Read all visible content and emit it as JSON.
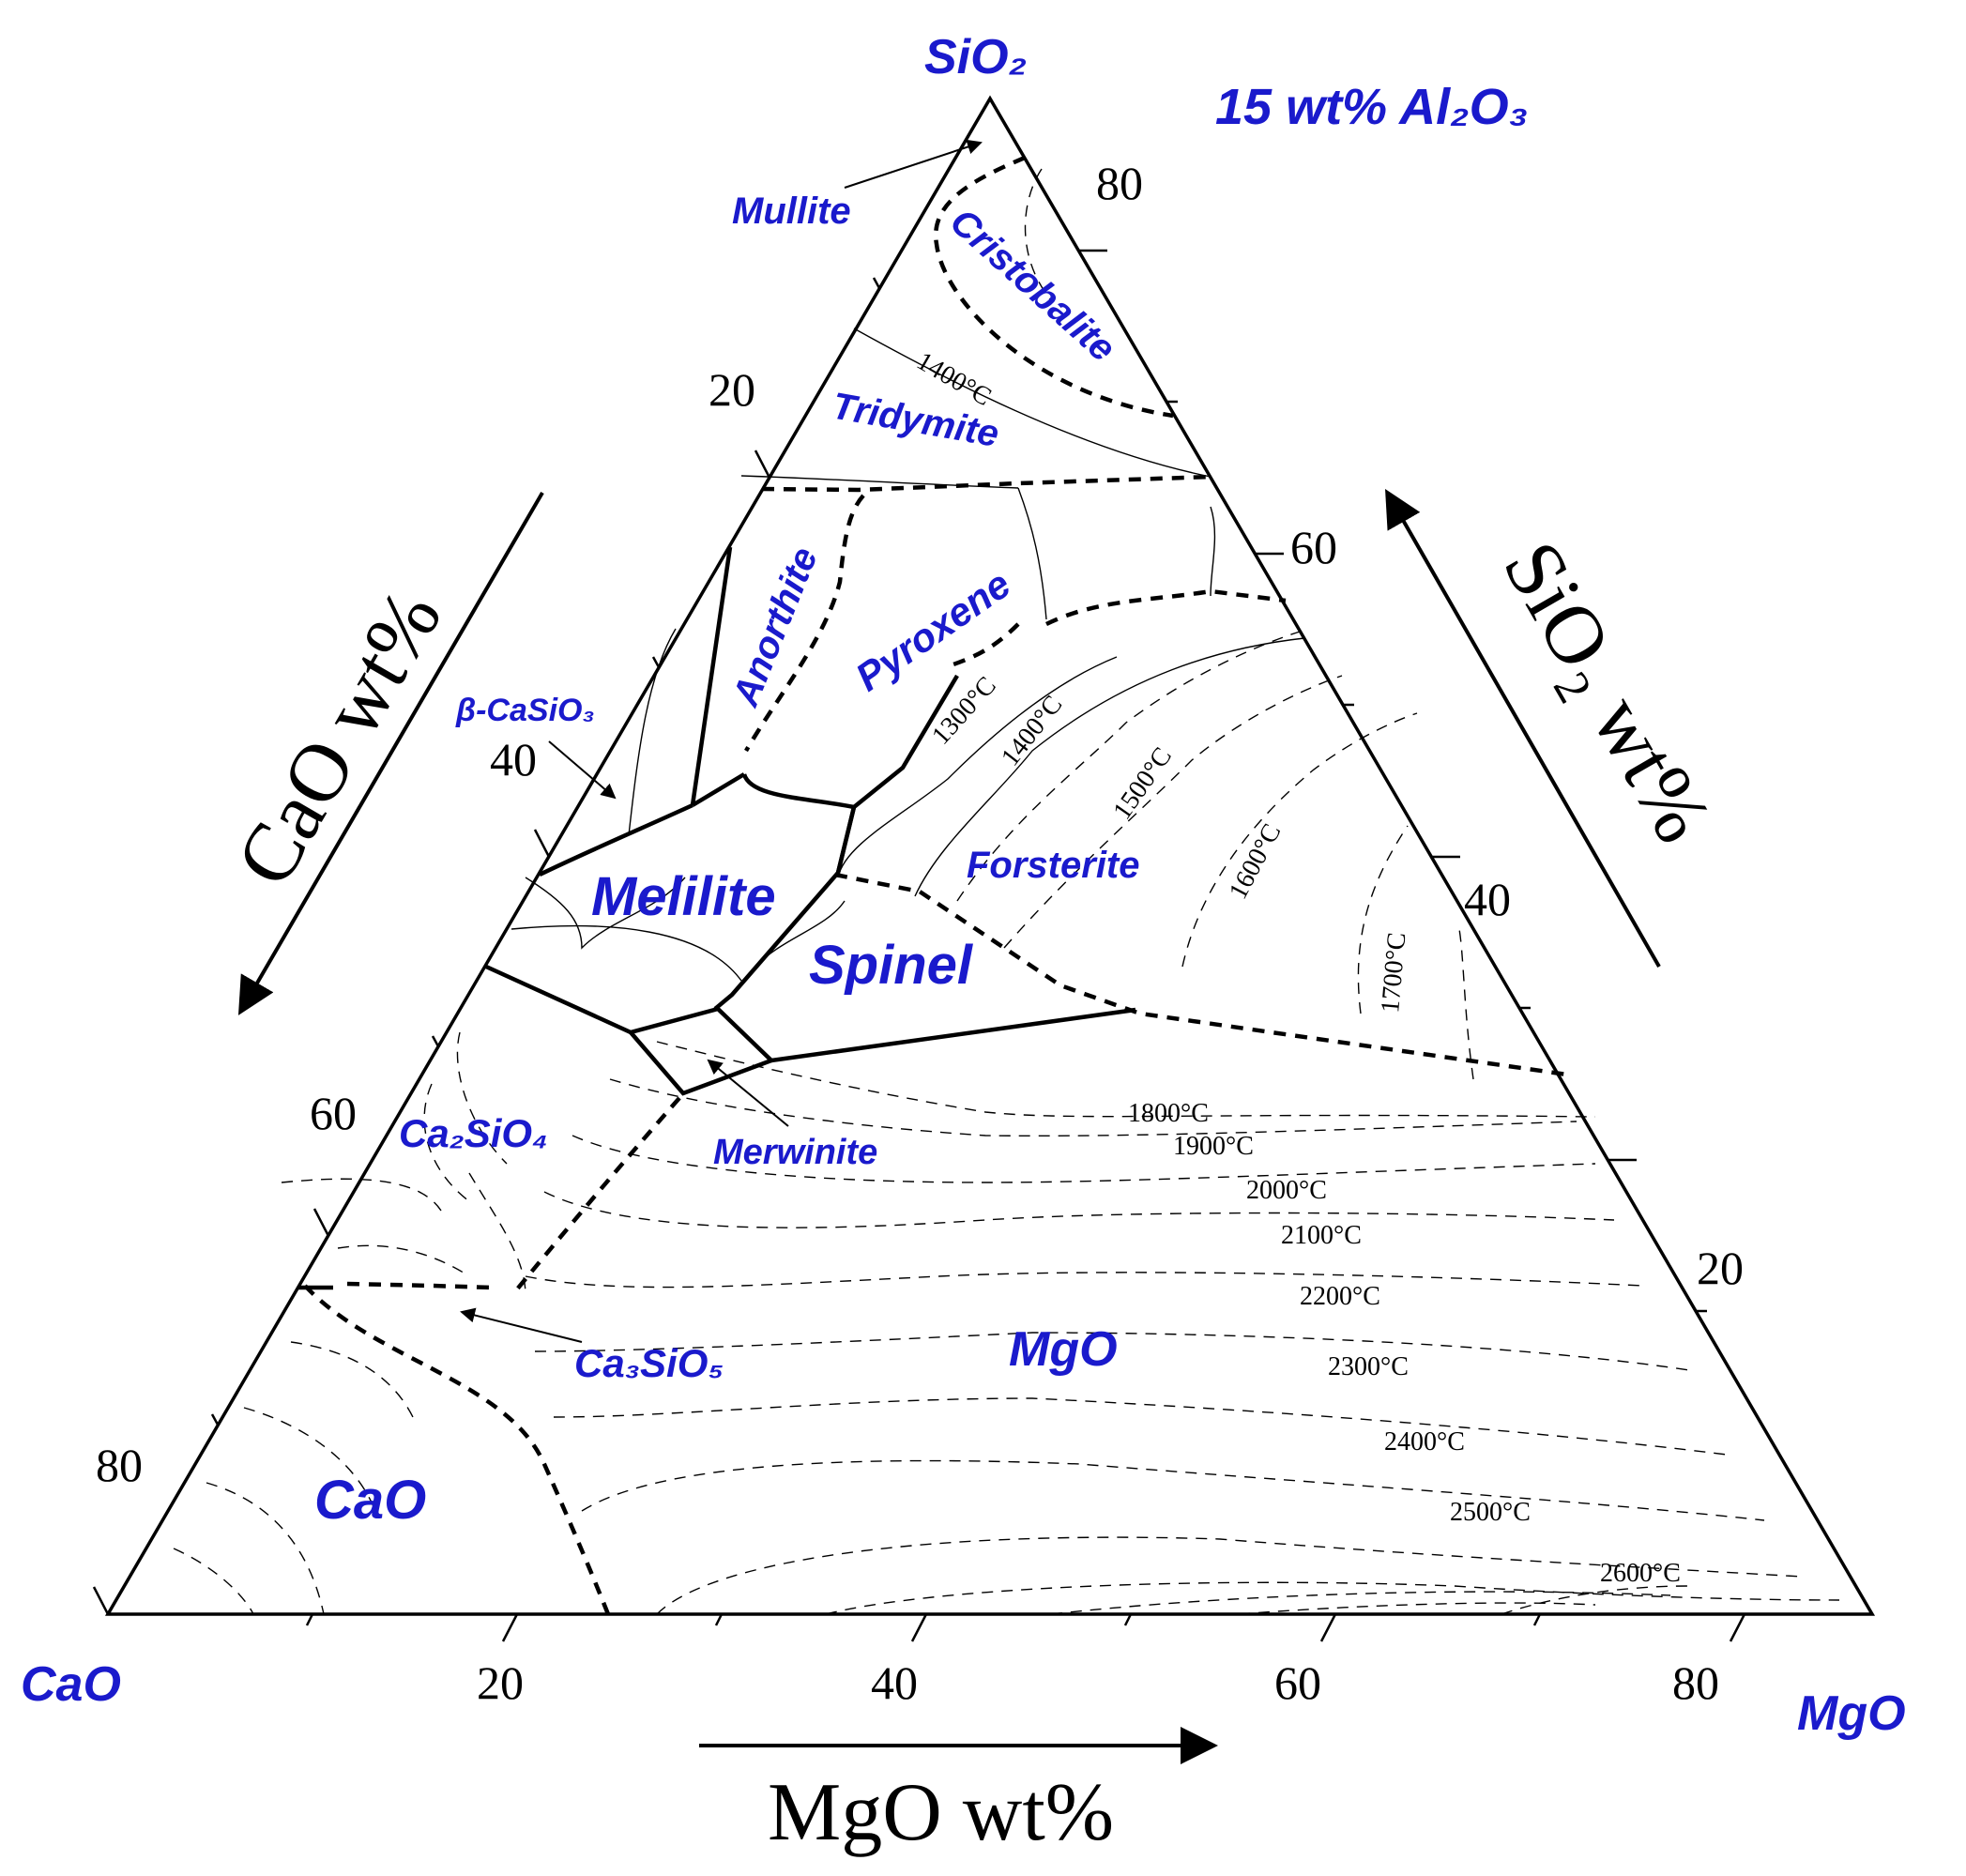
{
  "title_note": "15 wt% Al₂O₃",
  "vertices": {
    "top": "SiO₂",
    "left": "CaO",
    "right": "MgO"
  },
  "axes": {
    "cao_axis_label": "CaO wt%",
    "sio2_axis_label": "SiO₂ wt%",
    "mgo_axis_label": "MgO wt%",
    "cao_ticks": [
      "20",
      "40",
      "60",
      "80"
    ],
    "sio2_ticks": [
      "80",
      "60",
      "40",
      "20"
    ],
    "mgo_ticks": [
      "20",
      "40",
      "60",
      "80"
    ]
  },
  "phases": {
    "mullite": "Mullite",
    "cristobalite": "Cristobalite",
    "tridymite": "Tridymite",
    "anorthite": "Anorthite",
    "pyroxene": "Pyroxene",
    "beta_casio3": "β-CaSiO₃",
    "melilite": "Melilite",
    "forsterite": "Forsterite",
    "spinel": "Spinel",
    "ca2sio4": "Ca₂SiO₄",
    "merwinite": "Merwinite",
    "ca3sio5": "Ca₃SiO₅",
    "mgo": "MgO",
    "cao": "CaO"
  },
  "isotherms": {
    "t1300": "1300°C",
    "t1400a": "1400°C",
    "t1400b": "1400°C",
    "t1500": "1500°C",
    "t1600": "1600°C",
    "t1700": "1700°C",
    "t1800": "1800°C",
    "t1900": "1900°C",
    "t2000": "2000°C",
    "t2100": "2100°C",
    "t2200": "2200°C",
    "t2300": "2300°C",
    "t2400": "2400°C",
    "t2500": "2500°C",
    "t2600": "2600°C"
  },
  "colors": {
    "label_blue": "#1a1acc",
    "line_black": "#000000"
  }
}
